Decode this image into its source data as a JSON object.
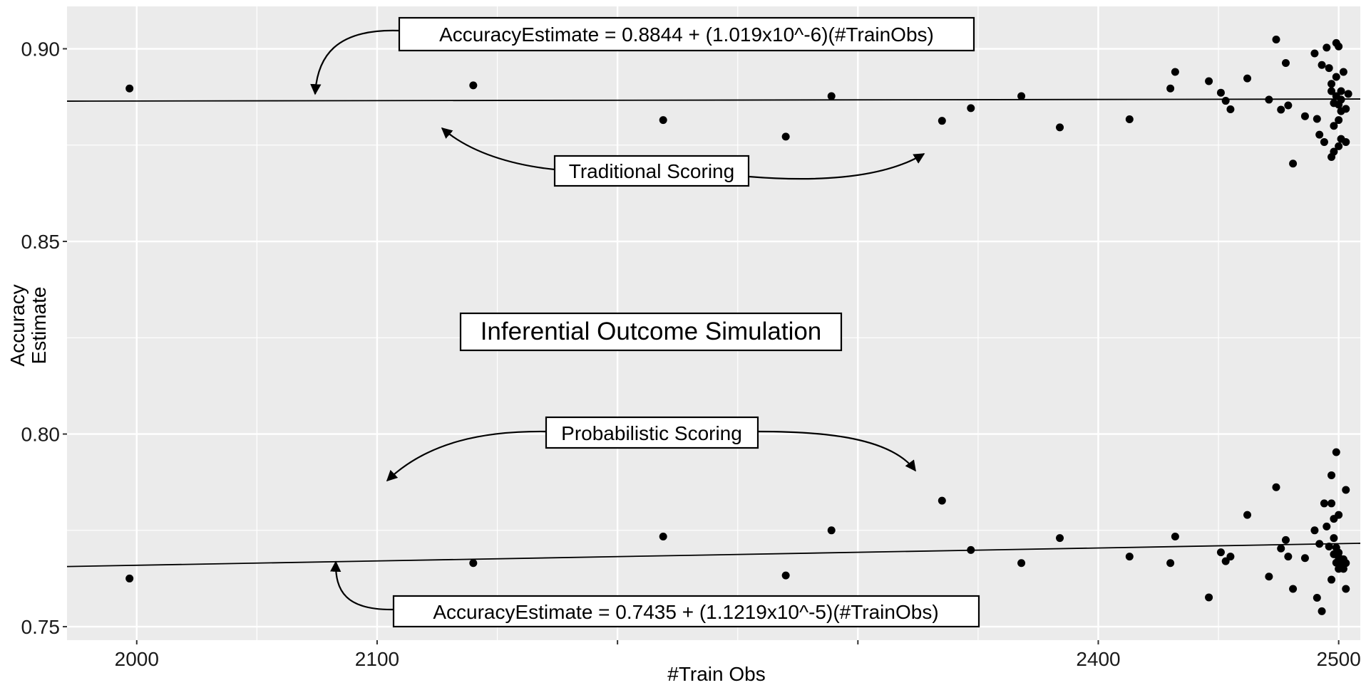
{
  "chart_data": {
    "type": "scatter",
    "xlabel": "#Train Obs",
    "ylabel_lines": [
      "Accuracy",
      "Estimate"
    ],
    "xlim": [
      1971,
      2509
    ],
    "ylim": [
      0.7465,
      0.911
    ],
    "x_ticks": [
      2000,
      2100,
      2400,
      2500
    ],
    "x_gridlines": [
      2000,
      2100,
      2200,
      2300,
      2400,
      2500
    ],
    "y_ticks": [
      0.75,
      0.8,
      0.85,
      0.9
    ],
    "y_tick_labels": [
      "0.75",
      "0.80",
      "0.85",
      "0.90"
    ],
    "grid": true,
    "background": "#ebebeb",
    "gridline_color": "#ffffff",
    "point_color": "#000000",
    "series": [
      {
        "fit": {
          "intercept": 0.8844,
          "slope": 1.019e-06
        },
        "points": [
          [
            1997,
            0.8897
          ],
          [
            2140,
            0.8905
          ],
          [
            2219,
            0.8815
          ],
          [
            2270,
            0.8772
          ],
          [
            2289,
            0.8877
          ],
          [
            2335,
            0.8813
          ],
          [
            2347,
            0.8846
          ],
          [
            2368,
            0.8877
          ],
          [
            2384,
            0.8796
          ],
          [
            2413,
            0.8817
          ],
          [
            2430,
            0.8897
          ],
          [
            2432,
            0.894
          ],
          [
            2446,
            0.8916
          ],
          [
            2451,
            0.8886
          ],
          [
            2453,
            0.8865
          ],
          [
            2455,
            0.8843
          ],
          [
            2462,
            0.8923
          ],
          [
            2471,
            0.8868
          ],
          [
            2474,
            0.9024
          ],
          [
            2476,
            0.8842
          ],
          [
            2478,
            0.8963
          ],
          [
            2479,
            0.8853
          ],
          [
            2481,
            0.8702
          ],
          [
            2486,
            0.8825
          ],
          [
            2490,
            0.8988
          ],
          [
            2491,
            0.8818
          ],
          [
            2492,
            0.8777
          ],
          [
            2493,
            0.8958
          ],
          [
            2494,
            0.8758
          ],
          [
            2495,
            0.9003
          ],
          [
            2496,
            0.895
          ],
          [
            2497,
            0.8909
          ],
          [
            2497,
            0.8719
          ],
          [
            2497,
            0.889
          ],
          [
            2498,
            0.8859
          ],
          [
            2498,
            0.88
          ],
          [
            2498,
            0.8733
          ],
          [
            2499,
            0.8927
          ],
          [
            2499,
            0.9015
          ],
          [
            2499,
            0.8877
          ],
          [
            2500,
            0.9006
          ],
          [
            2500,
            0.8855
          ],
          [
            2500,
            0.8815
          ],
          [
            2500,
            0.8747
          ],
          [
            2501,
            0.8868
          ],
          [
            2501,
            0.8838
          ],
          [
            2501,
            0.889
          ],
          [
            2501,
            0.8766
          ],
          [
            2502,
            0.894
          ],
          [
            2503,
            0.8844
          ],
          [
            2503,
            0.8758
          ],
          [
            2504,
            0.8883
          ]
        ]
      },
      {
        "fit": {
          "intercept": 0.7435,
          "slope": 1.1219e-05
        },
        "points": [
          [
            1997,
            0.7625
          ],
          [
            2140,
            0.7665
          ],
          [
            2219,
            0.7734
          ],
          [
            2270,
            0.7633
          ],
          [
            2289,
            0.775
          ],
          [
            2335,
            0.7827
          ],
          [
            2347,
            0.7699
          ],
          [
            2368,
            0.7665
          ],
          [
            2384,
            0.773
          ],
          [
            2413,
            0.7682
          ],
          [
            2430,
            0.7665
          ],
          [
            2432,
            0.7734
          ],
          [
            2446,
            0.7576
          ],
          [
            2451,
            0.7693
          ],
          [
            2453,
            0.767
          ],
          [
            2455,
            0.7682
          ],
          [
            2462,
            0.779
          ],
          [
            2471,
            0.763
          ],
          [
            2474,
            0.7862
          ],
          [
            2476,
            0.7703
          ],
          [
            2478,
            0.7725
          ],
          [
            2479,
            0.7682
          ],
          [
            2481,
            0.7598
          ],
          [
            2486,
            0.7678
          ],
          [
            2490,
            0.775
          ],
          [
            2491,
            0.7575
          ],
          [
            2492,
            0.7715
          ],
          [
            2493,
            0.754
          ],
          [
            2494,
            0.782
          ],
          [
            2495,
            0.776
          ],
          [
            2496,
            0.7708
          ],
          [
            2497,
            0.7622
          ],
          [
            2497,
            0.782
          ],
          [
            2497,
            0.7893
          ],
          [
            2498,
            0.778
          ],
          [
            2498,
            0.7688
          ],
          [
            2498,
            0.773
          ],
          [
            2499,
            0.7666
          ],
          [
            2499,
            0.7705
          ],
          [
            2499,
            0.7953
          ],
          [
            2500,
            0.779
          ],
          [
            2500,
            0.768
          ],
          [
            2500,
            0.765
          ],
          [
            2500,
            0.7692
          ],
          [
            2501,
            0.7655
          ],
          [
            2501,
            0.767
          ],
          [
            2501,
            0.766
          ],
          [
            2502,
            0.765
          ],
          [
            2502,
            0.7675
          ],
          [
            2503,
            0.7855
          ],
          [
            2503,
            0.7665
          ],
          [
            2503,
            0.7598
          ]
        ]
      }
    ],
    "annotations": {
      "top_equation": "AccuracyEstimate = 0.8844 + (1.019x10^-6)(#TrainObs)",
      "traditional": "Traditional Scoring",
      "center_title": "Inferential Outcome Simulation",
      "probabilistic": "Probabilistic Scoring",
      "bottom_equation": "AccuracyEstimate = 0.7435 + (1.1219x10^-5)(#TrainObs)"
    }
  }
}
